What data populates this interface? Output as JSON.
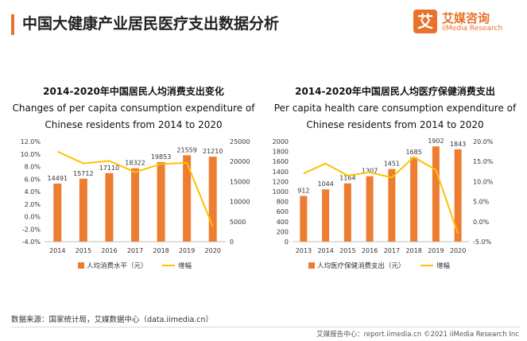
{
  "page_title": "中国大健康产业居民医疗支出数据分析",
  "logo": {
    "icon_char": "艾",
    "name": "艾媒咨询",
    "sub": "iiMedia Research"
  },
  "source": "数据来源：国家统计局，艾媒数据中心（data.iimedia.cn）",
  "footer": "艾媒报告中心：report.iimedia.cn    ©2021  iiMedia Research  Inc",
  "colors": {
    "accent": "#e8712c",
    "bar": "#ed7d31",
    "line": "#ffc000"
  },
  "chart_data": [
    {
      "type": "bar",
      "title_cn": "2014-2020年中国居民人均消费支出变化",
      "title_en_1": "Changes of per capita consumption expenditure of",
      "title_en_2": "Chinese residents from 2014 to 2020",
      "categories": [
        "2014",
        "2015",
        "2016",
        "2017",
        "2018",
        "2019",
        "2020"
      ],
      "series": [
        {
          "name": "人均消费水平（元）",
          "kind": "bar",
          "axis": "right",
          "values": [
            14491,
            15712,
            17110,
            18322,
            19853,
            21559,
            21210
          ]
        },
        {
          "name": "增幅",
          "kind": "line",
          "axis": "left",
          "values": [
            10.4,
            8.5,
            8.9,
            7.1,
            8.4,
            8.6,
            -1.6
          ]
        }
      ],
      "y_left": {
        "min": -4,
        "max": 12,
        "step": 2,
        "ticks": [
          "12.0%",
          "10.0%",
          "8.0%",
          "6.0%",
          "4.0%",
          "2.0%",
          "0.0%",
          "-2.0%",
          "-4.0%"
        ]
      },
      "y_right": {
        "min": 0,
        "max": 25000,
        "step": 5000,
        "ticks": [
          "25000",
          "20000",
          "15000",
          "10000",
          "5000",
          "0"
        ]
      },
      "grid": false,
      "legend_position": "bottom"
    },
    {
      "type": "bar",
      "title_cn": "2014-2020年中国居民人均医疗保健消费支出",
      "title_en_1": "Per capita health care consumption expenditure of",
      "title_en_2": "Chinese residents from 2014 to 2020",
      "categories": [
        "2013",
        "2014",
        "2015",
        "2016",
        "2017",
        "2018",
        "2019",
        "2020"
      ],
      "series": [
        {
          "name": "人均医疗保健消费支出（元）",
          "kind": "bar",
          "axis": "left",
          "values": [
            912,
            1044,
            1164,
            1307,
            1451,
            1685,
            1902,
            1843
          ]
        },
        {
          "name": "增幅",
          "kind": "line",
          "axis": "right",
          "values": [
            12.0,
            14.5,
            11.5,
            12.3,
            11.0,
            16.1,
            12.9,
            -3.0
          ]
        }
      ],
      "y_left": {
        "min": 0,
        "max": 2000,
        "step": 200,
        "ticks": [
          "2000",
          "1800",
          "1600",
          "1400",
          "1200",
          "1000",
          "800",
          "600",
          "400",
          "200",
          "0"
        ]
      },
      "y_right": {
        "min": -5,
        "max": 20,
        "step": 5,
        "ticks": [
          "20.0%",
          "15.0%",
          "10.0%",
          "5.0%",
          "0.0%",
          "-5.0%"
        ]
      },
      "grid": false,
      "legend_position": "bottom"
    }
  ]
}
